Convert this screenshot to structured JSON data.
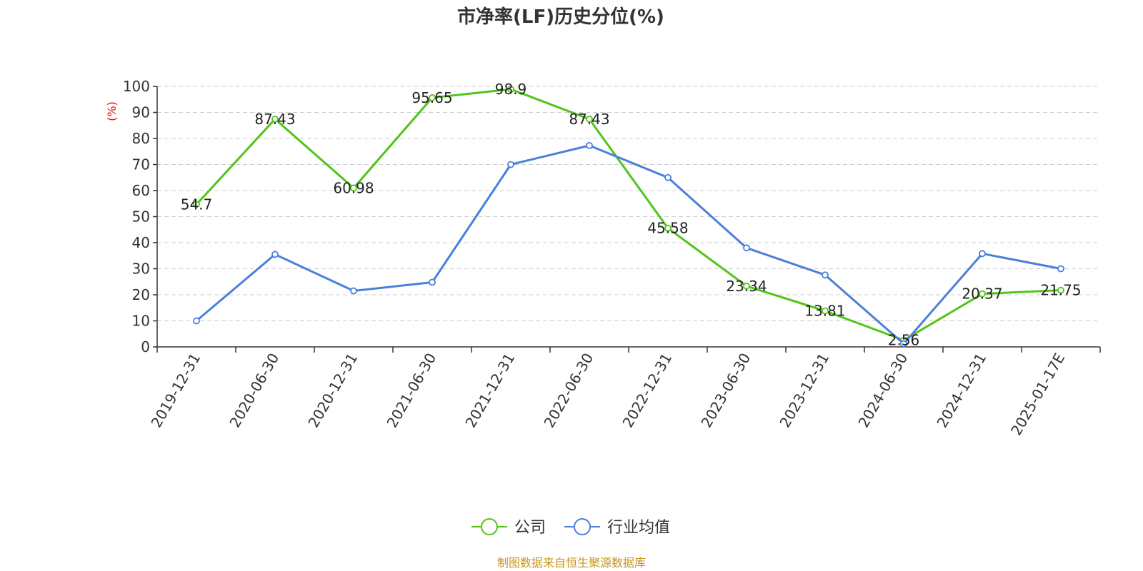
{
  "chart_data": {
    "type": "line",
    "title": "市净率(LF)历史分位(%)",
    "ylabel": "(%)",
    "ylim": [
      0,
      100
    ],
    "yticks": [
      0,
      10,
      20,
      30,
      40,
      50,
      60,
      70,
      80,
      90,
      100
    ],
    "categories": [
      "2019-12-31",
      "2020-06-30",
      "2020-12-31",
      "2021-06-30",
      "2021-12-31",
      "2022-06-30",
      "2022-12-31",
      "2023-06-30",
      "2023-12-31",
      "2024-06-30",
      "2024-12-31",
      "2025-01-17E"
    ],
    "series": [
      {
        "name": "公司",
        "color": "#52c41a",
        "show_labels": true,
        "values": [
          54.7,
          87.43,
          60.98,
          95.65,
          98.9,
          87.43,
          45.58,
          23.34,
          13.81,
          2.56,
          20.37,
          21.75
        ]
      },
      {
        "name": "行业均值",
        "color": "#4a7fdc",
        "show_labels": false,
        "values": [
          10,
          35.5,
          21.5,
          24.8,
          70,
          77.3,
          65,
          38,
          27.6,
          1.2,
          35.8,
          30
        ]
      }
    ],
    "grid": true,
    "legend_position": "bottom-center"
  },
  "colors": {
    "ylabel_unit": "#ff0000",
    "source": "#c8941a",
    "grid": "#cccccc",
    "axis": "#333333"
  },
  "source_text": "制图数据来自恒生聚源数据库"
}
